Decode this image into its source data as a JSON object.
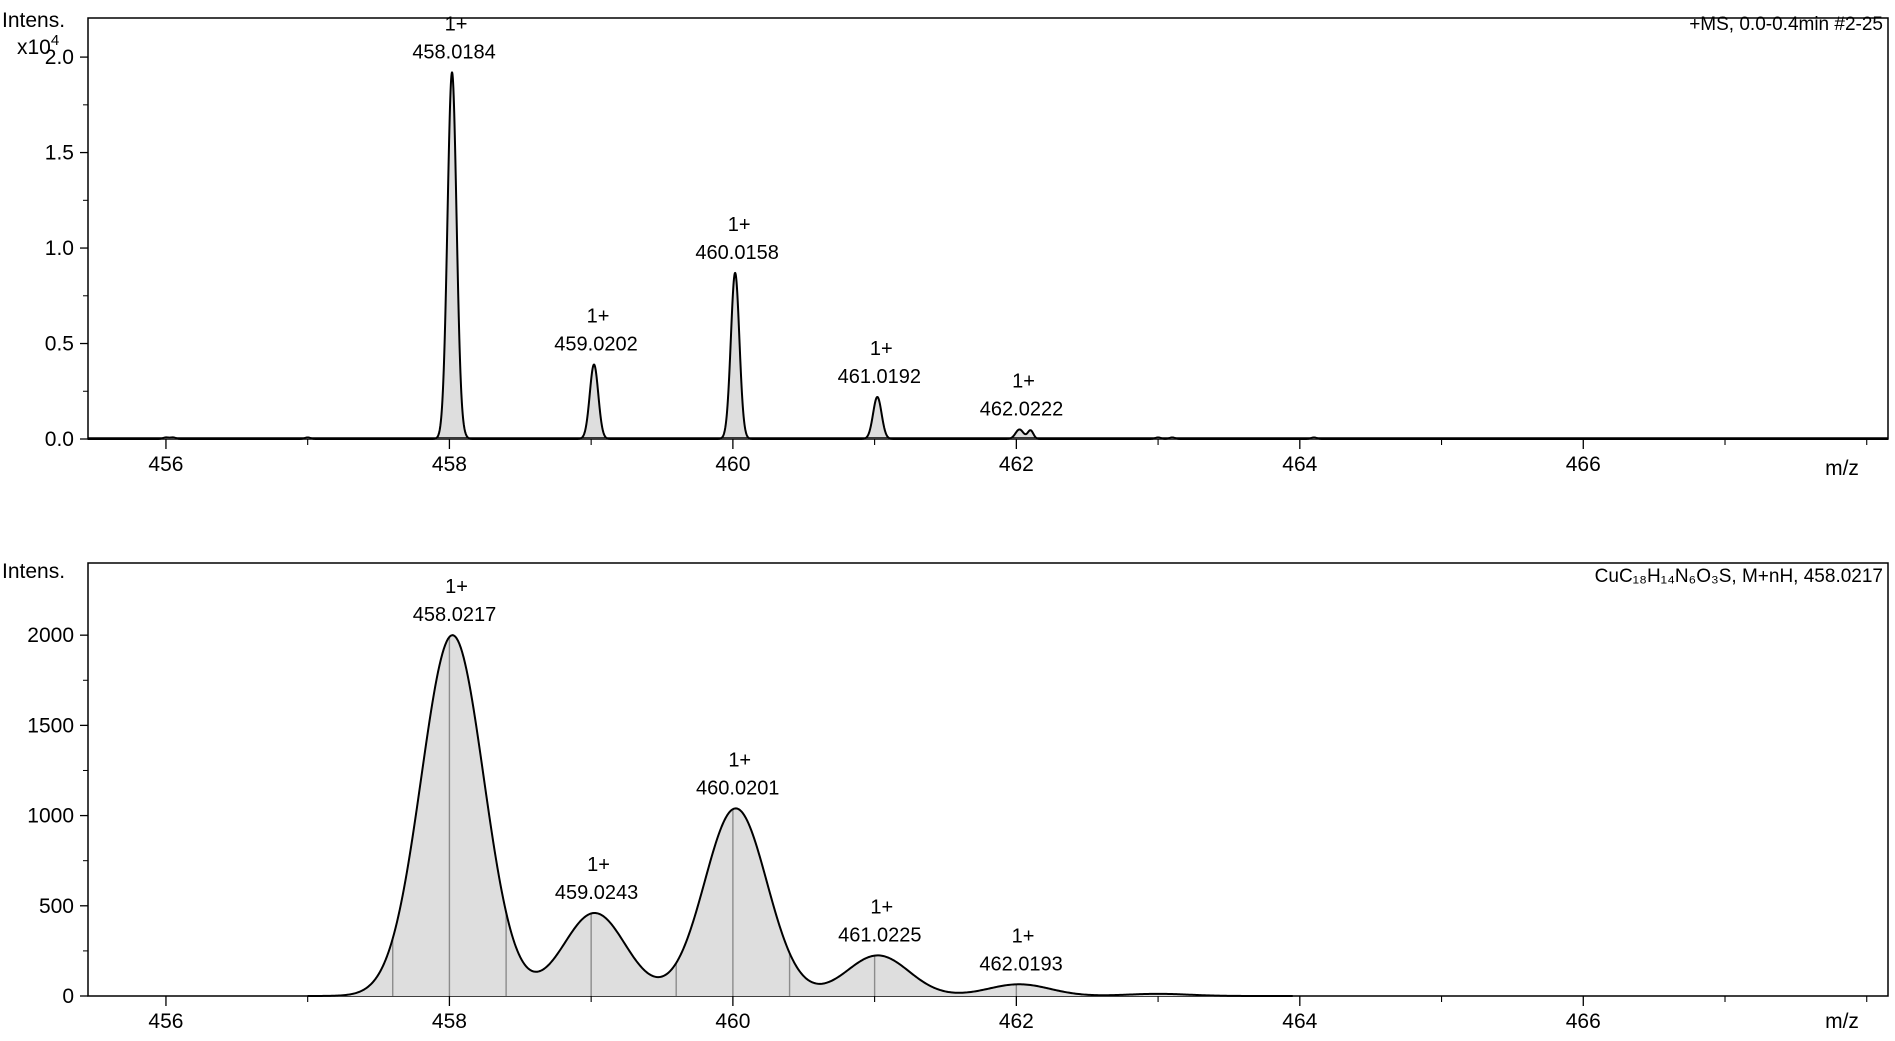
{
  "chart_data": [
    {
      "type": "line",
      "title": "+MS, 0.0-0.4min #2-25",
      "ylabel": "Intens.",
      "ylabel_multiplier": "x10",
      "ylabel_exponent": "4",
      "xlabel": "m/z",
      "xlim": [
        455.45,
        468.15
      ],
      "ylim": [
        0,
        2.1
      ],
      "x_ticks": [
        456,
        458,
        460,
        462,
        464,
        466
      ],
      "x_tick_labels": [
        "456",
        "458",
        "460",
        "462",
        "464",
        "466"
      ],
      "y_ticks": [
        0,
        0.5,
        1.0,
        1.5,
        2.0
      ],
      "y_tick_labels": [
        "0.0",
        "0.5",
        "1.0",
        "1.5",
        "2.0"
      ],
      "grid": false,
      "legend": "none",
      "peaks": [
        {
          "mz": 458.0184,
          "intensity": 1.92,
          "width": 0.032,
          "charge": "1+",
          "label": "458.0184"
        },
        {
          "mz": 459.0202,
          "intensity": 0.39,
          "width": 0.03,
          "charge": "1+",
          "label": "459.0202"
        },
        {
          "mz": 460.0158,
          "intensity": 0.87,
          "width": 0.03,
          "charge": "1+",
          "label": "460.0158"
        },
        {
          "mz": 461.0192,
          "intensity": 0.22,
          "width": 0.03,
          "charge": "1+",
          "label": "461.0192"
        },
        {
          "mz": 462.0222,
          "intensity": 0.05,
          "width": 0.028,
          "charge": "1+",
          "label": "462.0222"
        }
      ],
      "minor_peaks": [
        {
          "mz": 456.0,
          "intensity": 0.008,
          "width": 0.02
        },
        {
          "mz": 456.05,
          "intensity": 0.008,
          "width": 0.02
        },
        {
          "mz": 457.0,
          "intensity": 0.008,
          "width": 0.02
        },
        {
          "mz": 458.1,
          "intensity": 0.01,
          "width": 0.02
        },
        {
          "mz": 462.1,
          "intensity": 0.045,
          "width": 0.02
        },
        {
          "mz": 463.0,
          "intensity": 0.008,
          "width": 0.02
        },
        {
          "mz": 463.1,
          "intensity": 0.008,
          "width": 0.02
        },
        {
          "mz": 464.1,
          "intensity": 0.008,
          "width": 0.02
        }
      ]
    },
    {
      "type": "area",
      "title": "CuC₁₈H₁₄N₆O₃S, M+nH, 458.0217",
      "ylabel": "Intens.",
      "xlabel": "m/z",
      "xlim": [
        455.45,
        468.15
      ],
      "ylim": [
        0,
        2400
      ],
      "x_ticks": [
        456,
        458,
        460,
        462,
        464,
        466
      ],
      "x_tick_labels": [
        "456",
        "458",
        "460",
        "462",
        "464",
        "466"
      ],
      "y_ticks": [
        0,
        500,
        1000,
        1500,
        2000
      ],
      "y_tick_labels": [
        "0",
        "500",
        "1000",
        "1500",
        "2000"
      ],
      "grid": false,
      "legend": "none",
      "sim_range": [
        457.0,
        463.95
      ],
      "peaks": [
        {
          "mz": 458.0217,
          "intensity": 2000,
          "width": 0.22,
          "charge": "1+",
          "label": "458.0217"
        },
        {
          "mz": 459.0243,
          "intensity": 460,
          "width": 0.22,
          "charge": "1+",
          "label": "459.0243"
        },
        {
          "mz": 460.0201,
          "intensity": 1040,
          "width": 0.22,
          "charge": "1+",
          "label": "460.0201"
        },
        {
          "mz": 461.0225,
          "intensity": 225,
          "width": 0.22,
          "charge": "1+",
          "label": "461.0225"
        },
        {
          "mz": 462.0193,
          "intensity": 65,
          "width": 0.22,
          "charge": "1+",
          "label": "462.0193"
        },
        {
          "mz": 463.0,
          "intensity": 12,
          "width": 0.22
        }
      ],
      "drop_lines": [
        457.6,
        458.0,
        458.4,
        459.0,
        459.6,
        460.0,
        460.4,
        461.0,
        462.0
      ]
    }
  ],
  "colors": {
    "axis": "#000000",
    "trace": "#000000",
    "fill": "#dedede",
    "drop_line": "#8c8c8c",
    "background": "#ffffff"
  }
}
